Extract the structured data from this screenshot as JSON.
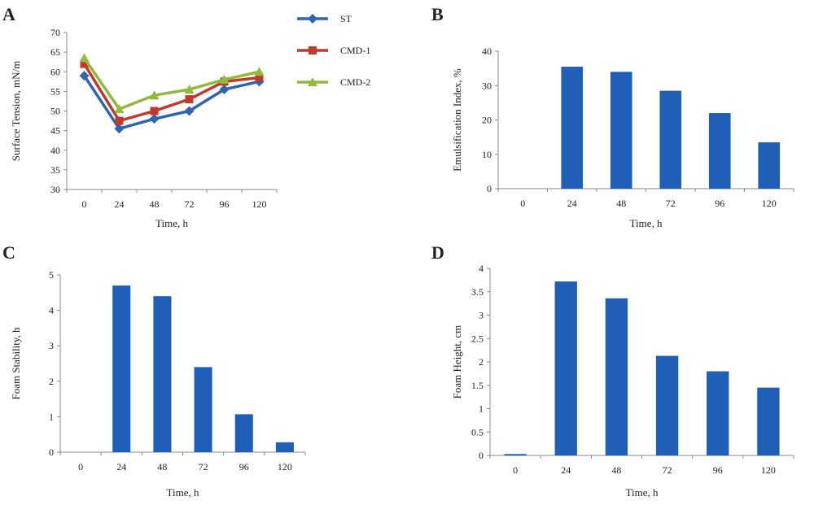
{
  "chart_data": [
    {
      "panel": "A",
      "type": "line",
      "xlabel": "Time, h",
      "ylabel": "Surface Tension, mN/m",
      "categories": [
        "0",
        "24",
        "48",
        "72",
        "96",
        "120"
      ],
      "ylim": [
        30,
        70
      ],
      "yticks": [
        "30",
        "35",
        "40",
        "45",
        "50",
        "55",
        "60",
        "65",
        "70"
      ],
      "legend_position": "top-right",
      "series": [
        {
          "name": "ST",
          "color": "#2e64b4",
          "marker": "diamond",
          "values": [
            59,
            45.5,
            48,
            50,
            55.5,
            57.5
          ]
        },
        {
          "name": "CMD-1",
          "color": "#c0392b",
          "marker": "square",
          "values": [
            62,
            47.5,
            50,
            53,
            57.5,
            58.5
          ]
        },
        {
          "name": "CMD-2",
          "color": "#8fba3c",
          "marker": "triangle",
          "values": [
            63.5,
            50.5,
            54,
            55.5,
            58,
            60
          ]
        }
      ]
    },
    {
      "panel": "B",
      "type": "bar",
      "xlabel": "Time, h",
      "ylabel": "Emulsification Index, %",
      "categories": [
        "0",
        "24",
        "48",
        "72",
        "96",
        "120"
      ],
      "values": [
        0,
        35.5,
        34,
        28.5,
        22,
        13.5
      ],
      "ylim": [
        0,
        40
      ],
      "yticks": [
        "0",
        "10",
        "20",
        "30",
        "40"
      ],
      "color": "#1f5fb8"
    },
    {
      "panel": "C",
      "type": "bar",
      "xlabel": "Time, h",
      "ylabel": "Foam Stability, h",
      "categories": [
        "0",
        "24",
        "48",
        "72",
        "96",
        "120"
      ],
      "values": [
        0,
        4.7,
        4.4,
        2.4,
        1.07,
        0.28
      ],
      "ylim": [
        0,
        5
      ],
      "yticks": [
        "0",
        "1",
        "2",
        "3",
        "4",
        "5"
      ],
      "color": "#1f5fb8"
    },
    {
      "panel": "D",
      "type": "bar",
      "xlabel": "Time, h",
      "ylabel": "Foam Height, cm",
      "categories": [
        "0",
        "24",
        "48",
        "72",
        "96",
        "120"
      ],
      "values": [
        0.03,
        3.72,
        3.36,
        2.13,
        1.8,
        1.45
      ],
      "ylim": [
        0,
        4
      ],
      "yticks": [
        "0",
        "0.5",
        "1",
        "1.5",
        "2",
        "2.5",
        "3",
        "3.5",
        "4"
      ],
      "color": "#1f5fb8"
    }
  ]
}
